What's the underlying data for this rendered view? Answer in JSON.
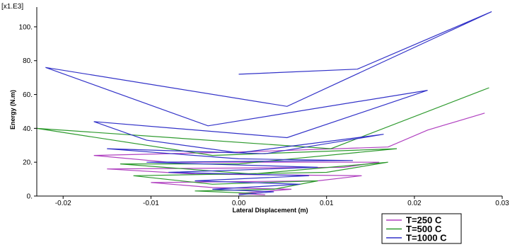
{
  "chart_data": {
    "type": "line",
    "multiplier": "[x1.E3]",
    "xlabel": "Lateral Displacement (m)",
    "ylabel": "Energy (N.m)",
    "xlim": [
      -0.023,
      0.03
    ],
    "ylim": [
      0,
      110
    ],
    "x_ticks": [
      -0.02,
      -0.01,
      0.0,
      0.01,
      0.02,
      0.03
    ],
    "x_tick_labels": [
      "-0.02",
      "-0.01",
      "0.00",
      "0.01",
      "0.02",
      "0.03"
    ],
    "y_ticks": [
      0,
      20,
      40,
      60,
      80,
      100
    ],
    "y_tick_labels": [
      "0.",
      "20.",
      "40.",
      "60.",
      "80.",
      "100."
    ],
    "grid": false,
    "legend_position": "bottom-right-outside",
    "series": [
      {
        "name": "T=250 C",
        "color": "#b040c0",
        "points": [
          [
            0.028,
            49
          ],
          [
            0.0215,
            39
          ],
          [
            0.017,
            29
          ],
          [
            0.0,
            26
          ],
          [
            -0.0165,
            24
          ],
          [
            -0.008,
            20
          ],
          [
            0.016,
            20
          ],
          [
            0.012,
            17
          ],
          [
            -0.015,
            16
          ],
          [
            -0.005,
            13
          ],
          [
            0.014,
            12
          ],
          [
            0.009,
            9
          ],
          [
            -0.01,
            8
          ],
          [
            -0.003,
            5
          ],
          [
            0.006,
            4
          ],
          [
            0.0,
            1.5
          ],
          [
            0.003,
            0.8
          ]
        ]
      },
      {
        "name": "T=500 C",
        "color": "#2e9a2e",
        "points": [
          [
            0.0285,
            64
          ],
          [
            0.0105,
            28
          ],
          [
            -0.023,
            40
          ],
          [
            -0.003,
            24
          ],
          [
            0.018,
            28
          ],
          [
            0.0,
            19
          ],
          [
            -0.0135,
            19
          ],
          [
            0.0015,
            13
          ],
          [
            0.017,
            20
          ],
          [
            0.01,
            14
          ],
          [
            -0.012,
            12
          ],
          [
            -0.003,
            7
          ],
          [
            0.009,
            9
          ],
          [
            0.004,
            4
          ],
          [
            -0.005,
            3
          ],
          [
            0.002,
            1.5
          ]
        ]
      },
      {
        "name": "T=1000 C",
        "color": "#3232c8",
        "points": [
          [
            0.0,
            72
          ],
          [
            0.0135,
            75
          ],
          [
            0.0288,
            109
          ],
          [
            0.0055,
            53
          ],
          [
            -0.022,
            76
          ],
          [
            -0.0035,
            41.5
          ],
          [
            0.0215,
            62.5
          ],
          [
            0.0055,
            34.5
          ],
          [
            -0.0165,
            44
          ],
          [
            -0.0105,
            33
          ],
          [
            0.0,
            25.5
          ],
          [
            0.0165,
            36.5
          ],
          [
            0.003,
            25
          ],
          [
            -0.015,
            28
          ],
          [
            0.0,
            22
          ],
          [
            0.013,
            21
          ],
          [
            -0.0105,
            20
          ],
          [
            0.009,
            17
          ],
          [
            -0.008,
            14
          ],
          [
            0.008,
            12
          ],
          [
            -0.005,
            9
          ],
          [
            0.007,
            7
          ],
          [
            -0.003,
            4
          ],
          [
            0.004,
            2.5
          ],
          [
            0.0,
            0.8
          ]
        ]
      }
    ]
  }
}
